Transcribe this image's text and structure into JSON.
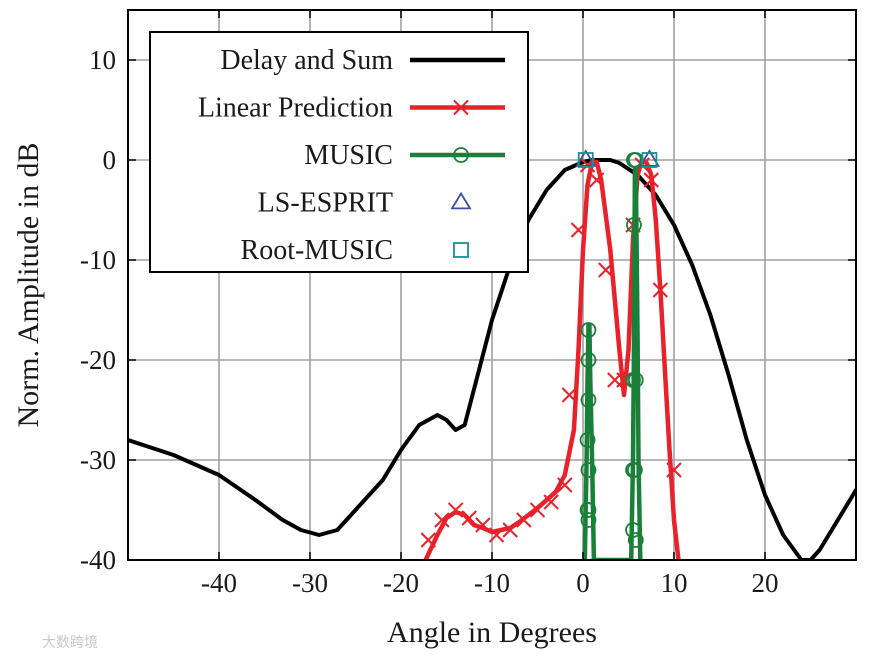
{
  "watermark": "大数跨境",
  "chart_data": {
    "type": "line",
    "title": "",
    "xlabel": "Angle in Degrees",
    "ylabel": "Norm. Amplitude in dB",
    "xlim": [
      -50,
      30
    ],
    "ylim": [
      -40,
      15
    ],
    "xticks": [
      -40,
      -30,
      -20,
      -10,
      0,
      10,
      20
    ],
    "yticks": [
      10,
      0,
      -10,
      -20,
      -30,
      -40
    ],
    "grid": true,
    "legend_position": "top-left",
    "series": [
      {
        "name": "Delay and Sum",
        "color": "#000000",
        "style": "line",
        "x": [
          -50,
          -45,
          -40,
          -36,
          -33,
          -31,
          -29,
          -27,
          -25,
          -22,
          -20,
          -18,
          -16,
          -15,
          -14,
          -13,
          -12,
          -10,
          -8,
          -6,
          -4,
          -2,
          0,
          1,
          2,
          3,
          4,
          6,
          8,
          10,
          12,
          14,
          16,
          18,
          20,
          22,
          24,
          25,
          26,
          28,
          30
        ],
        "y": [
          -28,
          -29.5,
          -31.5,
          -34,
          -36,
          -37,
          -37.5,
          -37,
          -35,
          -32,
          -29,
          -26.5,
          -25.5,
          -26,
          -27,
          -26.5,
          -23,
          -16,
          -10.5,
          -6,
          -3,
          -1,
          -0.2,
          0,
          0,
          0,
          -0.3,
          -1.5,
          -3.5,
          -6.5,
          -10.5,
          -15.5,
          -21.5,
          -28,
          -33.5,
          -37.5,
          -40,
          -40,
          -39,
          -36,
          -33
        ]
      },
      {
        "name": "Linear Prediction",
        "color": "#e8212a",
        "style": "line-with-x-markers",
        "x": [
          -17.3,
          -16,
          -15,
          -14,
          -13,
          -12,
          -11,
          -10,
          -9,
          -8,
          -7,
          -6,
          -5,
          -4,
          -3,
          -2,
          -1,
          -0.5,
          0,
          0.5,
          1,
          1.5,
          2,
          3,
          4,
          4.5,
          5,
          5.5,
          6,
          6.5,
          7,
          7.5,
          8,
          8.5,
          9,
          9.5,
          10,
          10.5
        ],
        "y": [
          -40,
          -37.5,
          -35.8,
          -35.2,
          -35.5,
          -36.5,
          -36.8,
          -37.2,
          -37,
          -36.8,
          -36.2,
          -35.5,
          -34.8,
          -34,
          -33.2,
          -31.5,
          -27,
          -19,
          -9,
          -2.5,
          -0.2,
          -0.2,
          -2,
          -9,
          -19,
          -23.5,
          -19,
          -8,
          -1.5,
          0,
          -0.3,
          -1.5,
          -6,
          -13,
          -21,
          -29,
          -36,
          -40
        ],
        "markers_x": [
          -17,
          -15.5,
          -14,
          -12.5,
          -11,
          -9.5,
          -8,
          -6.5,
          -5,
          -3.5,
          -2,
          -1.5,
          -0.5,
          0.5,
          1.5,
          2.5,
          3.5,
          4.5,
          5.5,
          6.5,
          7.5,
          8.5,
          10
        ],
        "markers_y": [
          -38,
          -36,
          -35,
          -35.8,
          -36.5,
          -37.5,
          -37,
          -36,
          -35,
          -34.2,
          -32.5,
          -23.5,
          -7,
          -0.5,
          -2,
          -11,
          -22,
          -22,
          -6.5,
          -0.5,
          -2,
          -13,
          -31
        ]
      },
      {
        "name": "MUSIC",
        "color": "#1a8039",
        "style": "line-with-circle-markers",
        "x": [
          0.2,
          0.4,
          0.5,
          0.6,
          0.7,
          0.8,
          1.0,
          1.2,
          5.3,
          5.5,
          5.6,
          5.7,
          5.8,
          6.0,
          6.1,
          6.3
        ],
        "y": [
          -40,
          -30,
          -22,
          -16.5,
          -16.5,
          -22,
          -30,
          -40,
          -40,
          -30,
          -18,
          -0.8,
          -0.8,
          -18,
          -30,
          -40
        ],
        "markers_x": [
          0.5,
          0.5,
          0.6,
          0.6,
          0.6,
          0.6,
          0.6,
          0.6,
          5.5,
          5.5,
          5.5,
          5.6,
          5.6,
          5.7,
          5.8,
          5.8,
          5.8
        ],
        "markers_y": [
          -35,
          -28,
          -24,
          -20,
          -17,
          -31,
          -36,
          -35,
          -37,
          -31,
          -22,
          -6.5,
          0,
          -31,
          -22,
          -38,
          0
        ]
      },
      {
        "name": "LS-ESPRIT",
        "color": "#3d4fa0",
        "style": "triangle-markers",
        "x": [
          0.3,
          7.3
        ],
        "y": [
          0,
          0
        ]
      },
      {
        "name": "Root-MUSIC",
        "color": "#1a8f99",
        "style": "square-markers",
        "x": [
          0.3,
          7.3
        ],
        "y": [
          0,
          0
        ]
      }
    ]
  }
}
